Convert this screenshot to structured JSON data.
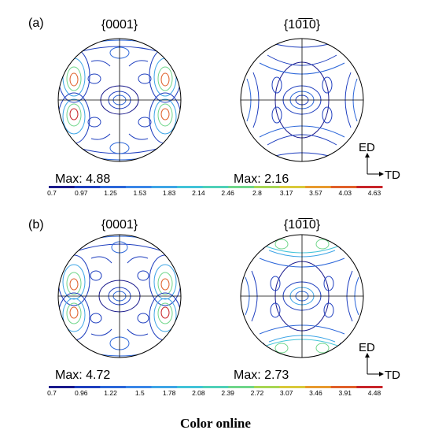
{
  "figure": {
    "caption": "Color online",
    "axes_glyph": {
      "vertical": "ED",
      "horizontal": "TD"
    },
    "palette": [
      "#1a1a8c",
      "#1f3fbf",
      "#2b66d9",
      "#3a86e8",
      "#3ea5e6",
      "#42c3d8",
      "#4fd0b8",
      "#6fd68a",
      "#a7d653",
      "#d9c93a",
      "#e89a2e",
      "#e0602a",
      "#c8252a"
    ],
    "panels": [
      {
        "label": "(a)",
        "pole_figures": [
          {
            "title": "{0001}",
            "max_text": "Max: 4.88"
          },
          {
            "title": "{10̅1̅0}",
            "max_text": "Max: 2.16"
          }
        ],
        "colorbar_ticks": [
          "0.7",
          "0.97",
          "1.25",
          "1.53",
          "1.83",
          "2.14",
          "2.46",
          "2.8",
          "3.17",
          "3.57",
          "4.03",
          "4.63"
        ]
      },
      {
        "label": "(b)",
        "pole_figures": [
          {
            "title": "{0001}",
            "max_text": "Max: 4.72"
          },
          {
            "title": "{10̅1̅0}",
            "max_text": "Max: 2.73"
          }
        ],
        "colorbar_ticks": [
          "0.7",
          "0.96",
          "1.22",
          "1.5",
          "1.78",
          "2.08",
          "2.39",
          "2.72",
          "3.07",
          "3.46",
          "3.91",
          "4.48"
        ]
      }
    ]
  }
}
